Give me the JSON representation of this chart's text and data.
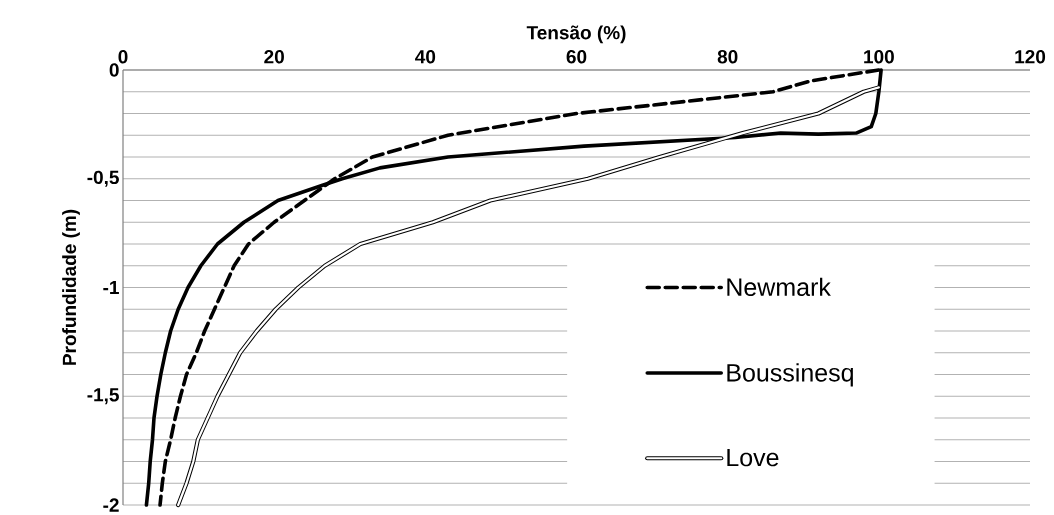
{
  "chart_data": {
    "type": "line",
    "xlabel": "Tensão (%)",
    "ylabel": "Profundidade (m)",
    "xlim": [
      0,
      120
    ],
    "xticks": [
      0,
      20,
      40,
      60,
      80,
      100,
      120
    ],
    "ylim": [
      -2,
      0
    ],
    "yticks": [
      0,
      {
        "value": -0.1,
        "label": null
      },
      {
        "value": -0.2,
        "label": null
      },
      {
        "value": -0.3,
        "label": null
      },
      {
        "value": -0.4,
        "label": null
      },
      {
        "value": -0.5,
        "label": "-0,5"
      },
      {
        "value": -0.6,
        "label": null
      },
      {
        "value": -0.7,
        "label": null
      },
      {
        "value": -0.8,
        "label": null
      },
      {
        "value": -0.9,
        "label": null
      },
      -1,
      {
        "value": -1.1,
        "label": null
      },
      {
        "value": -1.2,
        "label": null
      },
      {
        "value": -1.3,
        "label": null
      },
      {
        "value": -1.4,
        "label": null
      },
      {
        "value": -1.5,
        "label": "-1,5"
      },
      {
        "value": -1.6,
        "label": null
      },
      {
        "value": -1.7,
        "label": null
      },
      {
        "value": -1.8,
        "label": null
      },
      {
        "value": -1.9,
        "label": null
      },
      -2
    ],
    "grid": "y",
    "legend": "bottom right",
    "series": [
      {
        "name": "Newmark",
        "color": "#000000",
        "line_style": "dashed",
        "x": [
          100,
          91,
          86,
          60,
          43,
          33,
          28,
          24,
          20,
          16.6,
          14.7,
          13.4,
          12.1,
          10.8,
          9.7,
          8.4,
          7.6,
          6.9,
          6.3,
          5.6,
          5.2,
          4.9
        ],
        "values": [
          0,
          -0.05,
          -0.1,
          -0.2,
          -0.3,
          -0.4,
          -0.5,
          -0.6,
          -0.7,
          -0.8,
          -0.9,
          -1,
          -1.1,
          -1.2,
          -1.3,
          -1.4,
          -1.5,
          -1.6,
          -1.7,
          -1.8,
          -1.9,
          -2
        ]
      },
      {
        "name": "Boussinesq",
        "color": "#000000",
        "line_style": "solid",
        "x": [
          100.3,
          100,
          99.6,
          99,
          97,
          92,
          87,
          81,
          61,
          43,
          34,
          29,
          26.4,
          20.5,
          16,
          12.5,
          10.3,
          8.6,
          7.3,
          6.3,
          5.6,
          5,
          4.5,
          4.1,
          3.9,
          3.6,
          3.4,
          3.1
        ],
        "values": [
          0,
          -0.1,
          -0.2,
          -0.26,
          -0.29,
          -0.295,
          -0.29,
          -0.31,
          -0.35,
          -0.4,
          -0.45,
          -0.5,
          -0.53,
          -0.6,
          -0.7,
          -0.8,
          -0.9,
          -1,
          -1.1,
          -1.2,
          -1.3,
          -1.4,
          -1.5,
          -1.6,
          -1.7,
          -1.8,
          -1.9,
          -2
        ]
      },
      {
        "name": "Love",
        "color": "#000000",
        "line_style": "solid",
        "x": [
          100,
          98,
          92,
          82,
          71,
          61.5,
          48.6,
          41,
          31.4,
          26.7,
          23.2,
          20.2,
          17.7,
          15.5,
          14,
          12.5,
          11.2,
          9.9,
          9.3,
          8.4,
          7.3
        ],
        "values": [
          -0.08,
          -0.1,
          -0.2,
          -0.29,
          -0.4,
          -0.5,
          -0.6,
          -0.7,
          -0.8,
          -0.9,
          -1,
          -1.1,
          -1.2,
          -1.3,
          -1.4,
          -1.5,
          -1.6,
          -1.7,
          -1.8,
          -1.9,
          -2
        ]
      }
    ]
  }
}
